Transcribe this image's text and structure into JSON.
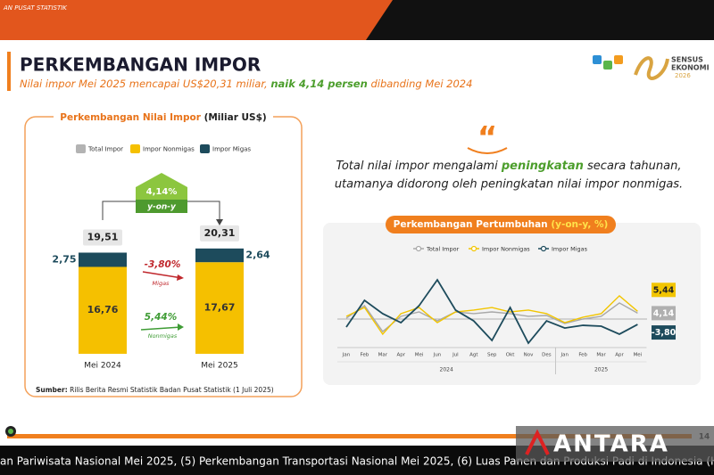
{
  "header": {
    "banner": "AN PUSAT STATISTIK",
    "title": "PERKEMBANGAN IMPOR",
    "subtitle_parts": [
      "Nilai impor Mei 2025 mencapai US$20,31 miliar, ",
      "naik 4,14 persen",
      " dibanding Mei 2024"
    ]
  },
  "logo": {
    "line1": "SENSUS",
    "line2": "EKONOMI",
    "line3": "2026"
  },
  "chart_data": [
    {
      "type": "bar",
      "title": "Perkembangan Nilai Impor",
      "unit": "(Miliar US$)",
      "categories": [
        "Mei 2024",
        "Mei 2025"
      ],
      "ylim": [
        0,
        22
      ],
      "series": [
        {
          "name": "Total Impor",
          "color": "#b3b3b3",
          "values": [
            19.51,
            20.31
          ],
          "value_labels": [
            "19,51",
            "20,31"
          ]
        },
        {
          "name": "Impor Nonmigas",
          "color": "#f5c000",
          "values": [
            16.76,
            17.67
          ],
          "value_labels": [
            "16,76",
            "17,67"
          ]
        },
        {
          "name": "Impor Migas",
          "color": "#1d4b5c",
          "values": [
            2.75,
            2.64
          ],
          "value_labels": [
            "2,75",
            "2,64"
          ]
        }
      ],
      "annotations": {
        "total_growth": "4,14%",
        "total_growth_note": "y-on-y",
        "migas_growth": "-3,80%",
        "migas_note": "Migas",
        "nonmigas_growth": "5,44%",
        "nonmigas_note": "Nonmigas"
      },
      "source_label": "Sumber:",
      "source": "Rilis Berita Resmi Statistik Badan Pusat Statistik (1 Juli 2025)"
    },
    {
      "type": "line",
      "title": "Perkembangan Pertumbuhan ",
      "unit": "(y-on-y, %)",
      "categories": [
        "Jan",
        "Feb",
        "Mar",
        "Apr",
        "Mei",
        "Jun",
        "Jul",
        "Agt",
        "Sep",
        "Okt",
        "Nov",
        "Des",
        "Jan",
        "Feb",
        "Mar",
        "Apr",
        "Mei"
      ],
      "x_groups": [
        "2024",
        "2025"
      ],
      "ylim": [
        -20,
        30
      ],
      "series": [
        {
          "name": "Total Impor",
          "color": "#a8a8a8",
          "values": [
            0.6,
            9.4,
            -8.8,
            1.9,
            5.0,
            -1.3,
            5.0,
            3.8,
            5.0,
            3.8,
            1.9,
            2.5,
            -3.1,
            0.0,
            1.9,
            11.3,
            4.14
          ],
          "value_labels": [
            null,
            null,
            null,
            null,
            null,
            null,
            null,
            null,
            null,
            null,
            null,
            null,
            null,
            null,
            null,
            null,
            "4,14"
          ]
        },
        {
          "name": "Impor Nonmigas",
          "color": "#f2c500",
          "values": [
            1.9,
            8.1,
            -10.6,
            3.8,
            8.1,
            -2.5,
            5.0,
            6.3,
            8.1,
            5.0,
            6.3,
            3.8,
            -2.5,
            1.3,
            3.8,
            16.3,
            5.44
          ],
          "value_labels": [
            null,
            null,
            null,
            null,
            null,
            null,
            null,
            null,
            null,
            null,
            null,
            null,
            null,
            null,
            null,
            null,
            "5,44"
          ]
        },
        {
          "name": "Impor Migas",
          "color": "#1d4b5c",
          "values": [
            -5.6,
            13.1,
            3.8,
            -2.5,
            9.4,
            27.5,
            6.3,
            -1.3,
            -15.0,
            8.1,
            -16.9,
            -1.3,
            -6.3,
            -4.4,
            -5.0,
            -10.6,
            -3.8
          ],
          "value_labels": [
            null,
            null,
            null,
            null,
            null,
            null,
            null,
            null,
            null,
            null,
            null,
            null,
            null,
            null,
            null,
            null,
            "-3,80"
          ]
        }
      ]
    }
  ],
  "quote": {
    "mark": "“",
    "line1_parts": [
      "Total nilai impor mengalami ",
      "peningkatan",
      " secara tahunan,"
    ],
    "line2": "utamanya didorong oleh peningkatan nilai impor nonmigas."
  },
  "footer": {
    "page": "14",
    "ticker": "an Pariwisata Nasional Mei 2025, (5) Perkembangan Transportasi Nasional Mei 2025, (6) Luas Panen dan Produksi Padi di Indonesia (Hasil K",
    "brand": "ANTARA"
  }
}
